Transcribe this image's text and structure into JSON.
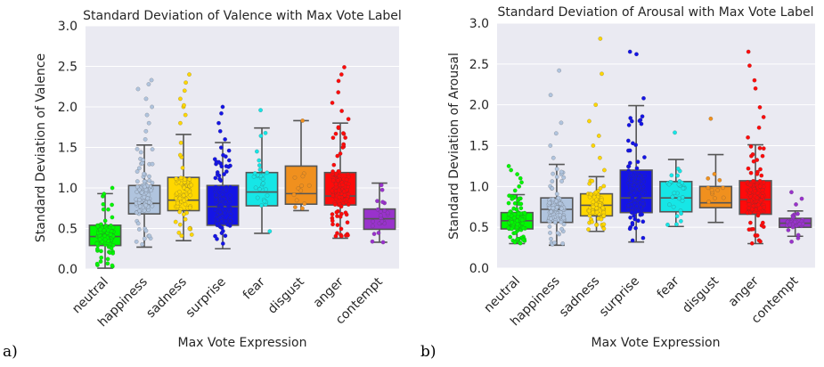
{
  "panel_labels": [
    "a)",
    "b)"
  ],
  "chart_data": [
    {
      "type": "box",
      "title": "Standard Deviation of Valence with Max Vote Label",
      "xlabel": "Max Vote Expression",
      "ylabel": "Standard Deviation of Valence",
      "ylim": [
        0,
        3
      ],
      "yticks": [
        "0.0",
        "0.5",
        "1.0",
        "1.5",
        "2.0",
        "2.5",
        "3.0"
      ],
      "grid": true,
      "categories": [
        "neutral",
        "happiness",
        "sadness",
        "surprise",
        "fear",
        "disgust",
        "anger",
        "contempt"
      ],
      "colors": [
        "#00f700",
        "#b0c4de",
        "#ffd700",
        "#1414e6",
        "#16e6e6",
        "#f0901e",
        "#ff0a0a",
        "#9932cc"
      ],
      "boxes": [
        {
          "q1": 0.29,
          "median": 0.4,
          "q3": 0.54,
          "whislo": 0.01,
          "whishi": 0.93
        },
        {
          "q1": 0.68,
          "median": 0.81,
          "q3": 1.03,
          "whislo": 0.27,
          "whishi": 1.53
        },
        {
          "q1": 0.72,
          "median": 0.85,
          "q3": 1.13,
          "whislo": 0.35,
          "whishi": 1.66
        },
        {
          "q1": 0.54,
          "median": 0.77,
          "q3": 1.03,
          "whislo": 0.25,
          "whishi": 1.56
        },
        {
          "q1": 0.78,
          "median": 0.95,
          "q3": 1.19,
          "whislo": 0.44,
          "whishi": 1.74
        },
        {
          "q1": 0.8,
          "median": 0.93,
          "q3": 1.27,
          "whislo": 0.72,
          "whishi": 1.83
        },
        {
          "q1": 0.79,
          "median": 0.9,
          "q3": 1.19,
          "whislo": 0.38,
          "whishi": 1.8
        },
        {
          "q1": 0.49,
          "median": 0.62,
          "q3": 0.74,
          "whislo": 0.33,
          "whishi": 1.06
        }
      ],
      "points": [
        {
          "n": 120,
          "lo": 0.01,
          "hi": 0.95,
          "extra": [
            1.0
          ]
        },
        {
          "n": 90,
          "lo": 0.3,
          "hi": 1.5,
          "extra": [
            1.6,
            1.7,
            1.8,
            1.9,
            2.0,
            2.1,
            2.22,
            2.28,
            2.33
          ]
        },
        {
          "n": 70,
          "lo": 0.35,
          "hi": 1.6,
          "extra": [
            1.8,
            1.9,
            2.0,
            2.02,
            2.1,
            2.2,
            2.3,
            2.4
          ]
        },
        {
          "n": 100,
          "lo": 0.25,
          "hi": 1.5,
          "extra": [
            1.6,
            1.7,
            1.8,
            1.92,
            2.0
          ]
        },
        {
          "n": 30,
          "lo": 0.45,
          "hi": 1.7,
          "extra": [
            1.96
          ]
        },
        {
          "n": 12,
          "lo": 0.72,
          "hi": 1.6,
          "extra": [
            1.83
          ]
        },
        {
          "n": 110,
          "lo": 0.38,
          "hi": 1.75,
          "extra": [
            1.85,
            1.95,
            2.05,
            2.18,
            2.32,
            2.4,
            2.49
          ]
        },
        {
          "n": 25,
          "lo": 0.33,
          "hi": 1.05,
          "extra": []
        }
      ]
    },
    {
      "type": "box",
      "title": "Standard Deviation of Arousal with Max Vote Label",
      "xlabel": "Max Vote Expression",
      "ylabel": "Standard Deviation of Arousal",
      "ylim": [
        0,
        3
      ],
      "yticks": [
        "0.0",
        "0.5",
        "1.0",
        "1.5",
        "2.0",
        "2.5",
        "3.0"
      ],
      "grid": true,
      "categories": [
        "neutral",
        "happiness",
        "sadness",
        "surprise",
        "fear",
        "disgust",
        "anger",
        "contempt"
      ],
      "colors": [
        "#00f700",
        "#b0c4de",
        "#ffd700",
        "#1414e6",
        "#16e6e6",
        "#f0901e",
        "#ff0a0a",
        "#9932cc"
      ],
      "boxes": [
        {
          "q1": 0.48,
          "median": 0.58,
          "q3": 0.68,
          "whislo": 0.3,
          "whishi": 0.9
        },
        {
          "q1": 0.56,
          "median": 0.72,
          "q3": 0.86,
          "whislo": 0.28,
          "whishi": 1.27
        },
        {
          "q1": 0.64,
          "median": 0.77,
          "q3": 0.91,
          "whislo": 0.45,
          "whishi": 1.12
        },
        {
          "q1": 0.68,
          "median": 0.86,
          "q3": 1.2,
          "whislo": 0.32,
          "whishi": 1.99
        },
        {
          "q1": 0.69,
          "median": 0.86,
          "q3": 1.06,
          "whislo": 0.51,
          "whishi": 1.33
        },
        {
          "q1": 0.74,
          "median": 0.8,
          "q3": 1.0,
          "whislo": 0.56,
          "whishi": 1.39
        },
        {
          "q1": 0.66,
          "median": 0.84,
          "q3": 1.07,
          "whislo": 0.3,
          "whishi": 1.51
        },
        {
          "q1": 0.5,
          "median": 0.55,
          "q3": 0.61,
          "whislo": 0.39,
          "whishi": 0.7
        }
      ],
      "points": [
        {
          "n": 120,
          "lo": 0.3,
          "hi": 0.9,
          "extra": [
            0.95,
            1.0,
            1.05,
            1.1,
            1.15,
            1.2,
            1.25
          ]
        },
        {
          "n": 90,
          "lo": 0.28,
          "hi": 1.25,
          "extra": [
            1.35,
            1.5,
            1.65,
            1.78,
            2.12,
            2.42
          ]
        },
        {
          "n": 70,
          "lo": 0.45,
          "hi": 1.1,
          "extra": [
            1.2,
            1.35,
            1.5,
            1.62,
            1.8,
            2.0,
            2.38,
            2.81
          ]
        },
        {
          "n": 120,
          "lo": 0.32,
          "hi": 1.95,
          "extra": [
            2.08,
            2.62,
            2.65
          ]
        },
        {
          "n": 30,
          "lo": 0.51,
          "hi": 1.3,
          "extra": [
            1.66
          ]
        },
        {
          "n": 12,
          "lo": 0.56,
          "hi": 1.35,
          "extra": [
            1.83
          ]
        },
        {
          "n": 110,
          "lo": 0.3,
          "hi": 1.5,
          "extra": [
            1.6,
            1.72,
            1.85,
            1.97,
            2.2,
            2.3,
            2.48,
            2.65
          ]
        },
        {
          "n": 30,
          "lo": 0.27,
          "hi": 0.7,
          "extra": [
            0.78,
            0.85,
            0.93
          ]
        }
      ]
    }
  ]
}
